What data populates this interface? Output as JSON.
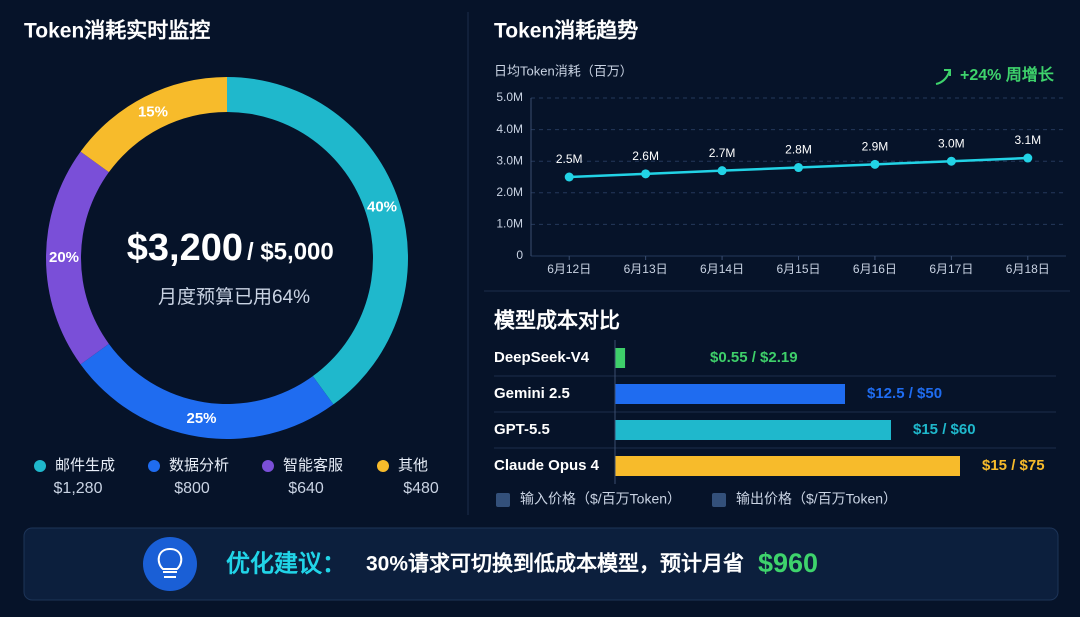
{
  "chart_data": [
    {
      "type": "pie",
      "title": "Token消耗实时监控",
      "categories": [
        "邮件生成",
        "数据分析",
        "智能客服",
        "其他"
      ],
      "values": [
        40,
        25,
        20,
        15
      ],
      "value_labels": [
        "40%",
        "25%",
        "20%",
        "15%"
      ],
      "colors": [
        "#1fb8cc",
        "#1f6cf0",
        "#7a4fd8",
        "#f7bb2b"
      ],
      "amounts": [
        "$1,280",
        "$800",
        "$640",
        "$480"
      ],
      "center_value": "$3,200",
      "center_total": "/ $5,000",
      "center_label": "月度预算已用64%"
    },
    {
      "type": "line",
      "title": "Token消耗趋势",
      "ylabel": "日均Token消耗（百万）",
      "annotation": "+24% 周增长",
      "categories": [
        "6月12日",
        "6月13日",
        "6月14日",
        "6月15日",
        "6月16日",
        "6月17日",
        "6月18日"
      ],
      "values": [
        2.5,
        2.6,
        2.7,
        2.8,
        2.9,
        3.0,
        3.1
      ],
      "value_labels": [
        "2.5M",
        "2.6M",
        "2.7M",
        "2.8M",
        "2.9M",
        "3.0M",
        "3.1M"
      ],
      "color": "#22d3e6",
      "ylim": [
        0,
        5
      ],
      "yticks": [
        0,
        {
          "value": 1,
          "label": "1.0M"
        },
        {
          "value": 2,
          "label": "2.0M"
        },
        {
          "value": 3,
          "label": "3.0M"
        },
        {
          "value": 4,
          "label": "4.0M"
        },
        {
          "value": 5,
          "label": "5.0M"
        }
      ],
      "grid": true
    },
    {
      "type": "hbar",
      "title": "模型成本对比",
      "categories": [
        "DeepSeek-V4",
        "Gemini 2.5",
        "GPT-5.5",
        "Claude Opus 4"
      ],
      "series": [
        {
          "name": "输入价格（$/百万Token）",
          "color": "#33507a",
          "values": [
            0.55,
            12.5,
            15,
            15
          ]
        },
        {
          "name": "输出价格（$/百万Token）",
          "color": "#33507a",
          "values": [
            2.19,
            50,
            60,
            75
          ]
        }
      ],
      "value_labels": [
        "$0.55 / $2.19",
        "$12.5 / $50",
        "$15 / $60",
        "$15 / $75"
      ],
      "colors": [
        "#3ecf6a",
        "#1f6cf0",
        "#1fb8cc",
        "#f7bb2b"
      ],
      "xlim": [
        0,
        75
      ]
    }
  ],
  "tip": {
    "label": "优化建议：",
    "text": "30%请求可切换到低成本模型，预计月省",
    "amount": "$960"
  }
}
